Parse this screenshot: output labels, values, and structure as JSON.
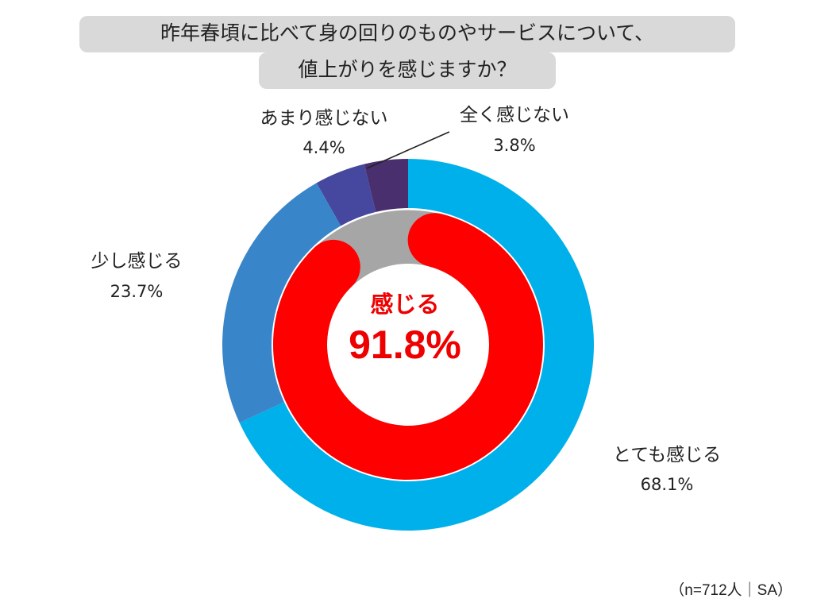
{
  "title": {
    "line1": "昨年春頃に比べて身の回りのものやサービスについて、",
    "line2": "値上がりを感じますか？"
  },
  "chart_data": {
    "type": "donut",
    "outer": [
      {
        "label": "とても感じる",
        "value": 68.1,
        "value_text": "68.1%",
        "color": "#00b0ea"
      },
      {
        "label": "少し感じる",
        "value": 23.7,
        "value_text": "23.7%",
        "color": "#3985c9"
      },
      {
        "label": "あまり感じない",
        "value": 4.4,
        "value_text": "4.4%",
        "color": "#45489e"
      },
      {
        "label": "全く感じない",
        "value": 3.8,
        "value_text": "3.8%",
        "color": "#4a2f6e"
      }
    ],
    "inner": {
      "label": "感じる",
      "value": 91.8,
      "value_text": "91.8%",
      "color": "#ff0000",
      "remainder_color": "#a6a6a6"
    }
  },
  "footnote": "（n=712人｜SA）"
}
